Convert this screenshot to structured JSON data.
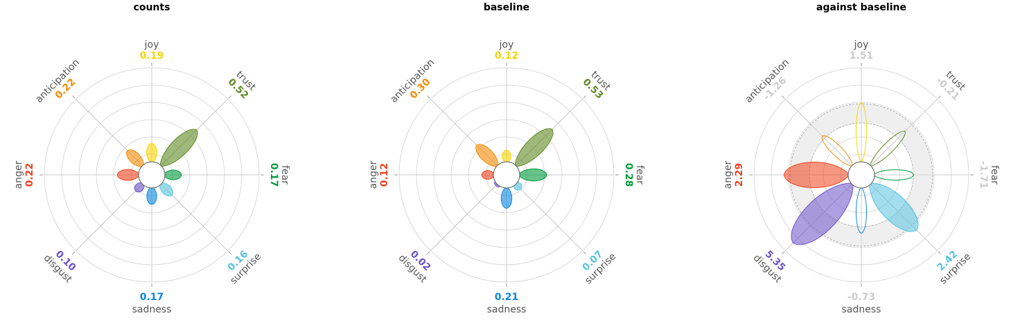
{
  "chart_data": [
    {
      "type": "radial_petal",
      "title": "counts",
      "mode": "proportion",
      "emotions": [
        "joy",
        "trust",
        "fear",
        "surprise",
        "sadness",
        "disgust",
        "anger",
        "anticipation"
      ],
      "values": [
        0.19,
        0.52,
        0.17,
        0.16,
        0.17,
        0.1,
        0.22,
        0.22
      ],
      "value_labels": [
        "0.19",
        "0.52",
        "0.17",
        "0.16",
        "0.17",
        "0.10",
        "0.22",
        "0.22"
      ],
      "grid": true
    },
    {
      "type": "radial_petal",
      "title": "baseline",
      "mode": "proportion",
      "emotions": [
        "joy",
        "trust",
        "fear",
        "surprise",
        "sadness",
        "disgust",
        "anger",
        "anticipation"
      ],
      "values": [
        0.12,
        0.53,
        0.28,
        0.07,
        0.21,
        0.02,
        0.12,
        0.3
      ],
      "value_labels": [
        "0.12",
        "0.53",
        "0.28",
        "0.07",
        "0.21",
        "0.02",
        "0.12",
        "0.30"
      ],
      "grid": true
    },
    {
      "type": "radial_petal",
      "title": "against baseline",
      "mode": "zscore",
      "emotions": [
        "joy",
        "trust",
        "fear",
        "surprise",
        "sadness",
        "disgust",
        "anger",
        "anticipation"
      ],
      "values": [
        1.51,
        -0.21,
        -1.71,
        2.42,
        -0.73,
        5.35,
        2.29,
        -1.26
      ],
      "value_labels": [
        "1.51",
        "-0.21",
        "-1.71",
        "2.42",
        "-0.73",
        "5.35",
        "2.29",
        "-1.26"
      ],
      "significant": [
        false,
        false,
        false,
        true,
        false,
        true,
        true,
        false
      ],
      "band_range": [
        -1.96,
        1.96
      ],
      "grid": true
    }
  ],
  "colors": {
    "joy": "#F6D503",
    "trust": "#5E8A22",
    "fear": "#009B3A",
    "surprise": "#56C3E0",
    "sadness": "#0A87E0",
    "disgust": "#6A52C8",
    "anger": "#F0421C",
    "anticipation": "#F58A00",
    "insignificant": "#CCCCCC",
    "grid": "#D0D0D0",
    "label": "#555555"
  }
}
